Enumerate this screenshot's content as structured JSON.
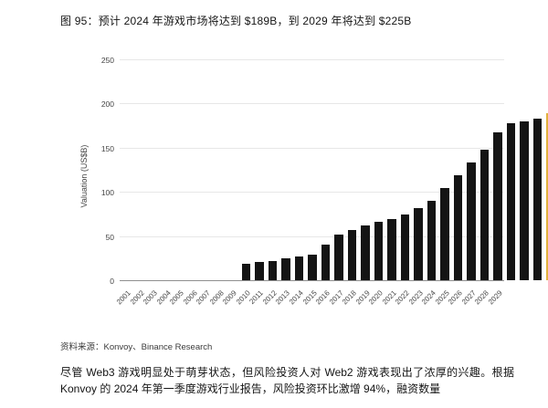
{
  "figure": {
    "title": "图 95：预计 2024 年游戏市场将达到 $189B，到 2029 年将达到 $225B",
    "source": "资料来源：Konvoy、Binance Research",
    "paragraph": "尽管 Web3 游戏明显处于萌芽状态，但风险投资人对 Web2 游戏表现出了浓厚的兴趣。根据 Konvoy 的 2024 年第一季度游戏行业报告，风险投资环比激增 94%，融资数量"
  },
  "colors": {
    "historical_bar": "#141414",
    "forecast_bar": "#E2B13C",
    "gridline": "#E7E7E7",
    "axis_line": "#8F8F8F",
    "tick_text": "#444444"
  },
  "chart_data": {
    "type": "bar",
    "title": "预计 2024 年游戏市场将达到 $189B，到 2029 年将达到 $225B",
    "xlabel": "",
    "ylabel": "Valuation (US$B)",
    "ylim": [
      0,
      250
    ],
    "yticks": [
      0,
      50,
      100,
      150,
      200,
      250
    ],
    "grid": true,
    "legend": "none",
    "x_label_rotation": -45,
    "forecast_start_category": "2024",
    "categories": [
      "2001",
      "2002",
      "2003",
      "2004",
      "2005",
      "2006",
      "2007",
      "2008",
      "2009",
      "2010",
      "2011",
      "2012",
      "2013",
      "2014",
      "2015",
      "2016",
      "2017",
      "2018",
      "2019",
      "2020",
      "2021",
      "2022",
      "2023",
      "2024",
      "2025",
      "2026",
      "2027",
      "2028",
      "2029"
    ],
    "series": [
      {
        "name": "Valuation (US$B)",
        "values": [
          19,
          21,
          22,
          25,
          27,
          29,
          40,
          52,
          57,
          62,
          66,
          69,
          74,
          82,
          90,
          104,
          119,
          133,
          148,
          167,
          178,
          180,
          183,
          189,
          195,
          201,
          208,
          216,
          225
        ]
      }
    ]
  }
}
